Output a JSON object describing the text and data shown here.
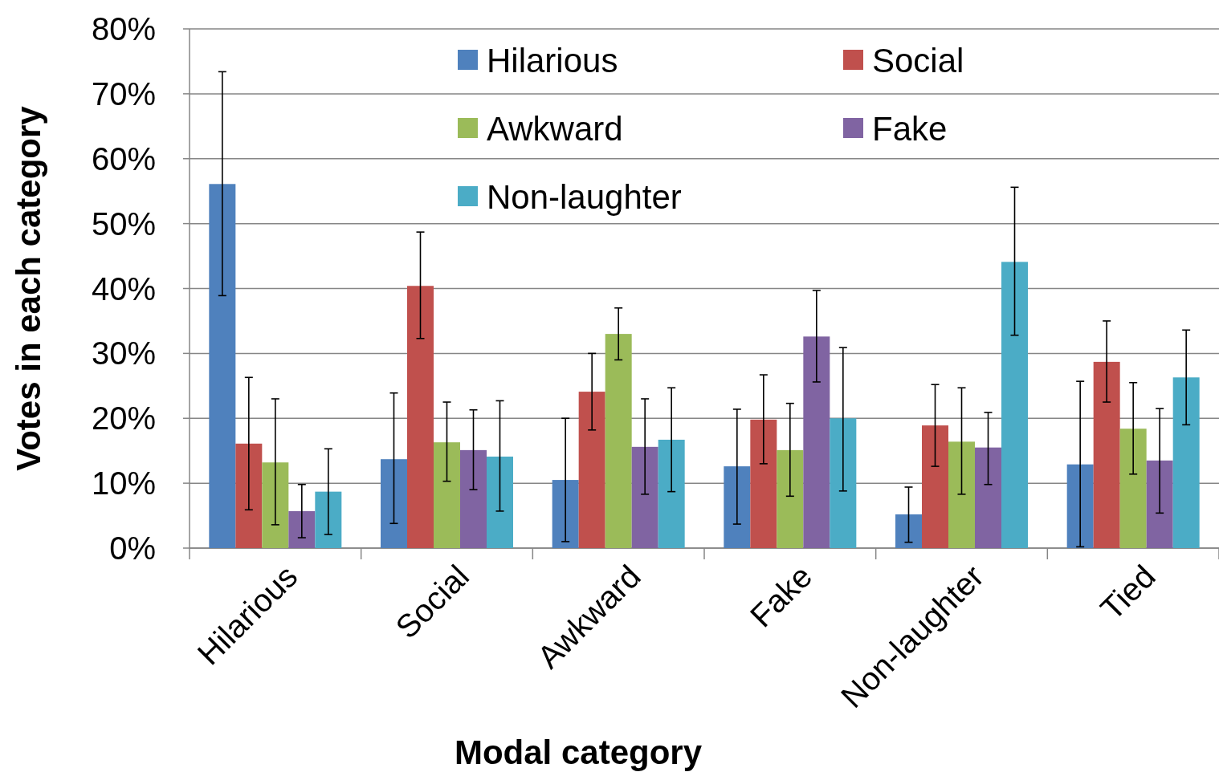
{
  "chart_data": {
    "type": "bar",
    "xlabel": "Modal category",
    "ylabel": "Votes in each category",
    "categories": [
      "Hilarious",
      "Social",
      "Awkward",
      "Fake",
      "Non-laughter",
      "Tied"
    ],
    "series": [
      {
        "name": "Hilarious",
        "color": "#4f81bd",
        "values": [
          56.1,
          13.7,
          10.5,
          12.6,
          5.2,
          12.9
        ],
        "errors": [
          [
            38.9,
            73.4
          ],
          [
            3.8,
            23.9
          ],
          [
            1.0,
            20.0
          ],
          [
            3.7,
            21.4
          ],
          [
            0.9,
            9.4
          ],
          [
            0.2,
            25.7
          ]
        ]
      },
      {
        "name": "Social",
        "color": "#c0504d",
        "values": [
          16.1,
          40.4,
          24.1,
          19.8,
          18.9,
          28.7
        ],
        "errors": [
          [
            5.9,
            26.3
          ],
          [
            32.3,
            48.7
          ],
          [
            18.2,
            30.0
          ],
          [
            13.0,
            26.7
          ],
          [
            12.6,
            25.2
          ],
          [
            22.5,
            35.0
          ]
        ]
      },
      {
        "name": "Awkward",
        "color": "#9bbb59",
        "values": [
          13.2,
          16.3,
          33.0,
          15.1,
          16.4,
          18.4
        ],
        "errors": [
          [
            3.6,
            23.0
          ],
          [
            10.3,
            22.5
          ],
          [
            29.0,
            37.0
          ],
          [
            8.0,
            22.3
          ],
          [
            8.3,
            24.7
          ],
          [
            11.4,
            25.5
          ]
        ]
      },
      {
        "name": "Fake",
        "color": "#8064a2",
        "values": [
          5.7,
          15.1,
          15.6,
          32.6,
          15.5,
          13.5
        ],
        "errors": [
          [
            1.6,
            9.8
          ],
          [
            9.0,
            21.3
          ],
          [
            8.3,
            23.0
          ],
          [
            25.6,
            39.7
          ],
          [
            9.8,
            20.9
          ],
          [
            5.4,
            21.5
          ]
        ]
      },
      {
        "name": "Non-laughter",
        "color": "#4bacc6",
        "values": [
          8.7,
          14.1,
          16.7,
          20.0,
          44.1,
          26.3
        ],
        "errors": [
          [
            2.1,
            15.3
          ],
          [
            5.7,
            22.7
          ],
          [
            8.7,
            24.7
          ],
          [
            8.8,
            30.9
          ],
          [
            32.8,
            55.6
          ],
          [
            19.0,
            33.6
          ]
        ]
      }
    ],
    "ylim": [
      0,
      80
    ],
    "yticks": [
      {
        "value": 0,
        "label": "0%"
      },
      {
        "value": 10,
        "label": "10%"
      },
      {
        "value": 20,
        "label": "20%"
      },
      {
        "value": 30,
        "label": "30%"
      },
      {
        "value": 40,
        "label": "40%"
      },
      {
        "value": 50,
        "label": "50%"
      },
      {
        "value": 60,
        "label": "60%"
      },
      {
        "value": 70,
        "label": "70%"
      },
      {
        "value": 80,
        "label": "80%"
      }
    ],
    "grid": "y",
    "legend": "top"
  }
}
